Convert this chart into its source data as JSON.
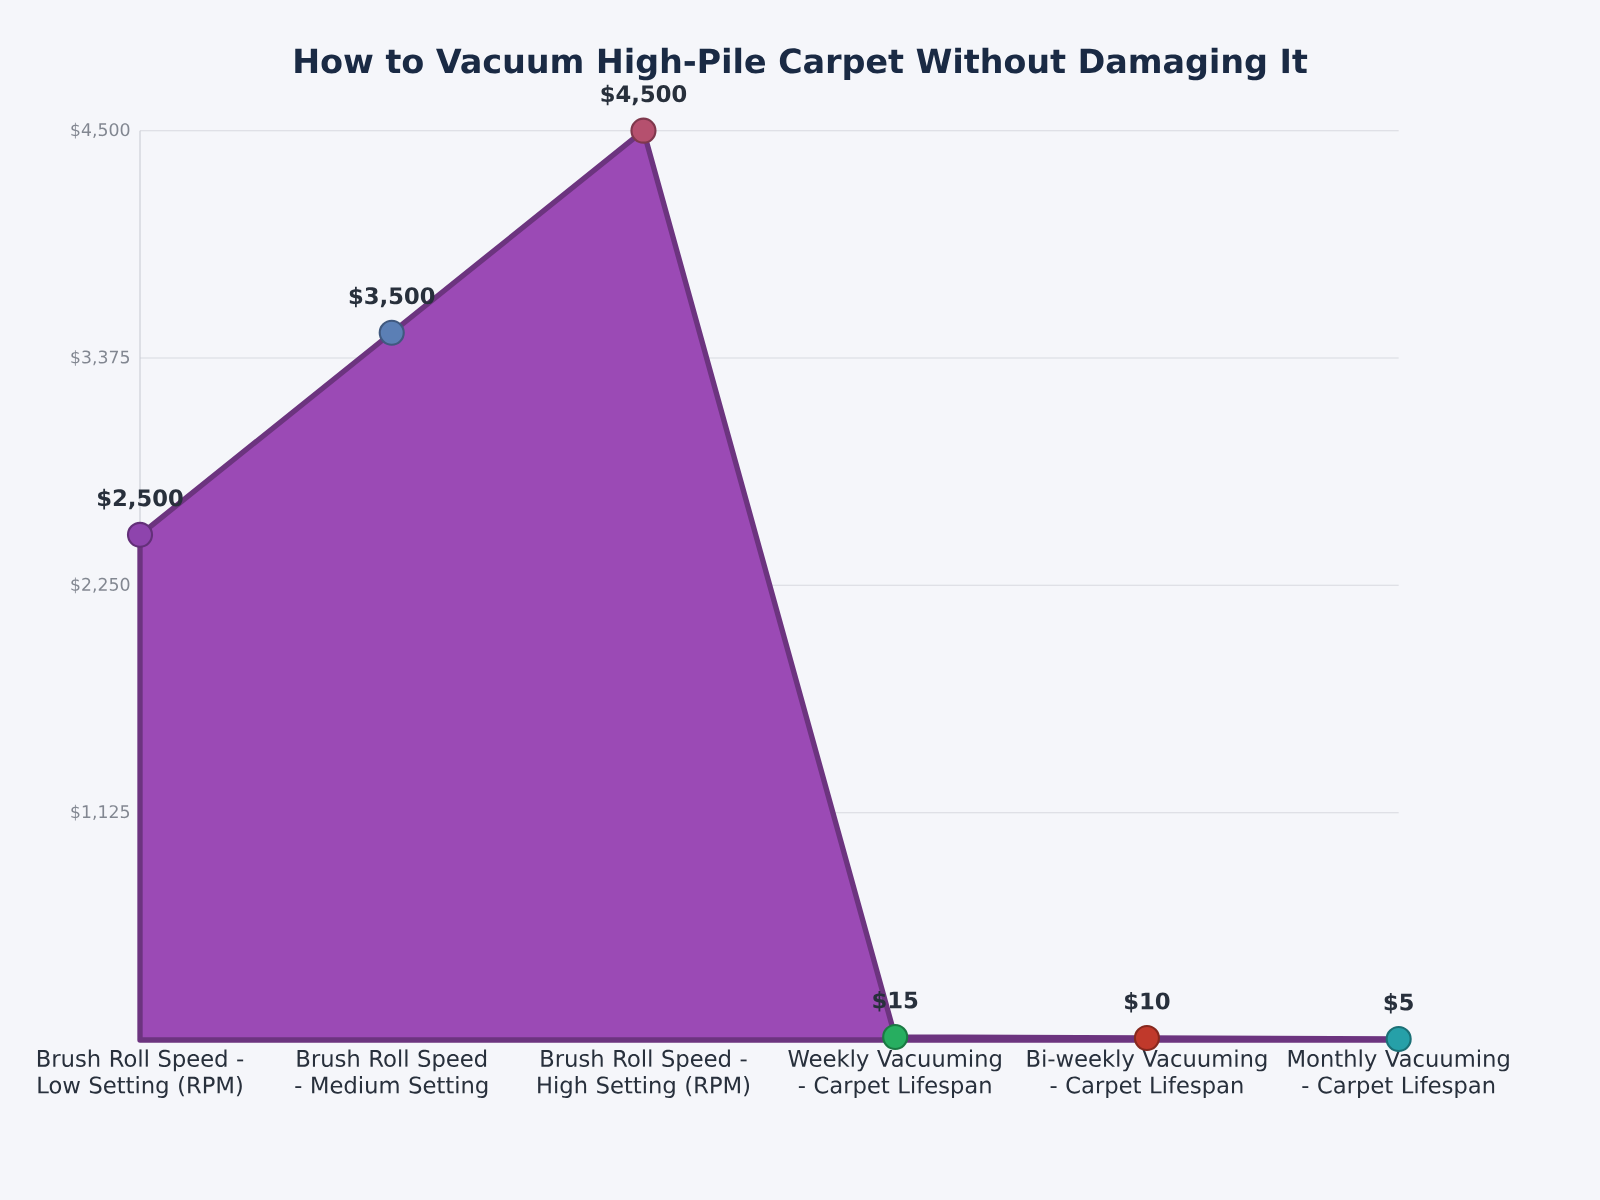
{
  "chart_data": {
    "type": "area",
    "title": "How to Vacuum High-Pile Carpet Without Damaging It",
    "categories": [
      "Brush Roll Speed - Low Setting (RPM)",
      "Brush Roll Speed - Medium Setting",
      "Brush Roll Speed - High Setting (RPM)",
      "Weekly Vacuuming - Carpet Lifespan",
      "Bi-weekly Vacuuming - Carpet Lifespan",
      "Monthly Vacuuming - Carpet Lifespan"
    ],
    "series": [
      {
        "color": "#9b4ab5",
        "values": [
          2500,
          3500,
          4500,
          15,
          10,
          5
        ],
        "value_labels": [
          "$2,500",
          "$3,500",
          "$4,500",
          "$15",
          "$10",
          "$5"
        ],
        "colors": [
          "#8e44ad",
          "#5b7fb5",
          "#b5506e",
          "#27ae60",
          "#c0392b",
          "#26a0a8"
        ]
      }
    ],
    "ylim": [
      0,
      4500
    ],
    "yticks": [
      {
        "value": 0,
        "label": null
      },
      {
        "value": 1125,
        "label": "$1,125"
      },
      {
        "value": 2250,
        "label": "$2,250"
      },
      {
        "value": 3375,
        "label": "$3,375"
      },
      {
        "value": 4500,
        "label": "$4,500"
      }
    ],
    "grid": "y",
    "marker": "circle"
  }
}
